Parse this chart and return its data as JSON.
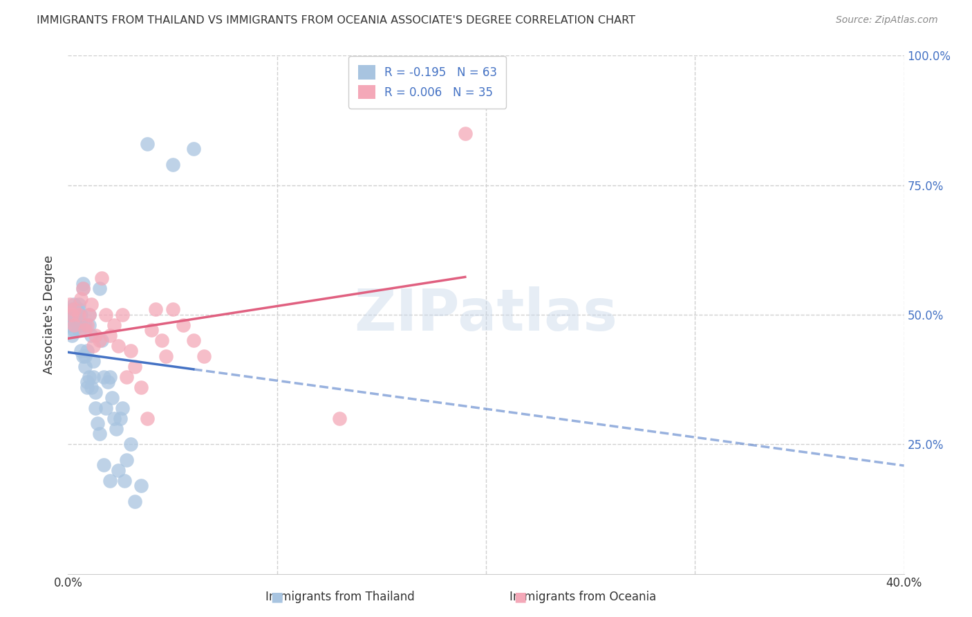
{
  "title": "IMMIGRANTS FROM THAILAND VS IMMIGRANTS FROM OCEANIA ASSOCIATE'S DEGREE CORRELATION CHART",
  "source": "Source: ZipAtlas.com",
  "ylabel": "Associate's Degree",
  "xlim": [
    0.0,
    0.4
  ],
  "ylim": [
    0.0,
    1.0
  ],
  "watermark": "ZIPatlas",
  "blue_color": "#a8c4e0",
  "pink_color": "#f4a8b8",
  "blue_line_color": "#4472c4",
  "pink_line_color": "#e06080",
  "grid_color": "#d0d0d0",
  "thailand_x": [
    0.001,
    0.002,
    0.002,
    0.003,
    0.003,
    0.003,
    0.004,
    0.004,
    0.004,
    0.005,
    0.005,
    0.005,
    0.005,
    0.006,
    0.006,
    0.007,
    0.007,
    0.008,
    0.008,
    0.009,
    0.009,
    0.01,
    0.01,
    0.011,
    0.012,
    0.012,
    0.013,
    0.015,
    0.016,
    0.017,
    0.018,
    0.019,
    0.02,
    0.021,
    0.022,
    0.023,
    0.025,
    0.026,
    0.028,
    0.03,
    0.001,
    0.002,
    0.003,
    0.004,
    0.005,
    0.006,
    0.007,
    0.008,
    0.009,
    0.01,
    0.011,
    0.013,
    0.014,
    0.015,
    0.017,
    0.02,
    0.024,
    0.027,
    0.032,
    0.035,
    0.038,
    0.05,
    0.06
  ],
  "thailand_y": [
    0.48,
    0.51,
    0.46,
    0.5,
    0.52,
    0.47,
    0.49,
    0.5,
    0.48,
    0.52,
    0.51,
    0.47,
    0.49,
    0.5,
    0.48,
    0.55,
    0.56,
    0.48,
    0.42,
    0.43,
    0.36,
    0.38,
    0.5,
    0.46,
    0.41,
    0.38,
    0.35,
    0.55,
    0.45,
    0.38,
    0.32,
    0.37,
    0.38,
    0.34,
    0.3,
    0.28,
    0.3,
    0.32,
    0.22,
    0.25,
    0.5,
    0.49,
    0.5,
    0.51,
    0.48,
    0.43,
    0.42,
    0.4,
    0.37,
    0.48,
    0.36,
    0.32,
    0.29,
    0.27,
    0.21,
    0.18,
    0.2,
    0.18,
    0.14,
    0.17,
    0.83,
    0.79,
    0.82
  ],
  "oceania_x": [
    0.001,
    0.002,
    0.003,
    0.003,
    0.005,
    0.006,
    0.007,
    0.008,
    0.009,
    0.01,
    0.011,
    0.012,
    0.013,
    0.015,
    0.016,
    0.018,
    0.02,
    0.022,
    0.024,
    0.026,
    0.028,
    0.03,
    0.032,
    0.035,
    0.038,
    0.04,
    0.042,
    0.045,
    0.047,
    0.05,
    0.055,
    0.06,
    0.065,
    0.13,
    0.19
  ],
  "oceania_y": [
    0.52,
    0.5,
    0.51,
    0.48,
    0.5,
    0.53,
    0.55,
    0.47,
    0.48,
    0.5,
    0.52,
    0.44,
    0.46,
    0.45,
    0.57,
    0.5,
    0.46,
    0.48,
    0.44,
    0.5,
    0.38,
    0.43,
    0.4,
    0.36,
    0.3,
    0.47,
    0.51,
    0.45,
    0.42,
    0.51,
    0.48,
    0.45,
    0.42,
    0.3,
    0.85
  ],
  "legend_blue": "R = -0.195   N = 63",
  "legend_pink": "R = 0.006   N = 35",
  "bottom_label_blue": "Immigrants from Thailand",
  "bottom_label_pink": "Immigrants from Oceania"
}
